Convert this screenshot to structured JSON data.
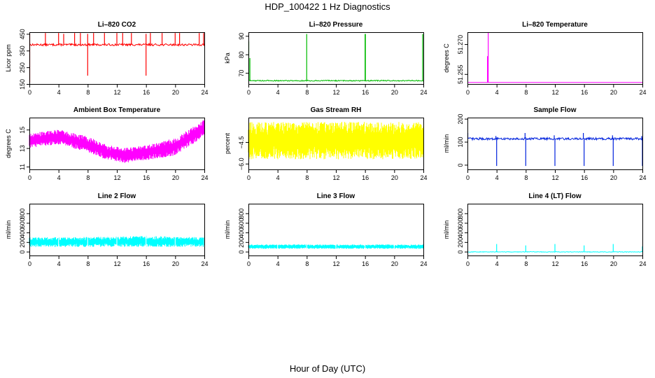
{
  "figure": {
    "title": "HDP_100422  1 Hz Diagnostics",
    "xlabel": "Hour of Day (UTC)"
  },
  "chart_data": [
    {
      "type": "line",
      "title": "Li–820 CO2",
      "ylabel": "Licor ppm",
      "color": "#ff0000",
      "xlim": [
        0,
        24
      ],
      "xticks": [
        "0",
        "4",
        "8",
        "12",
        "16",
        "20",
        "24"
      ],
      "ylim": [
        150,
        460
      ],
      "yticks": [
        {
          "v": 150,
          "label": "150"
        },
        {
          "v": 250,
          "label": "250"
        },
        {
          "v": 350,
          "label": "350"
        },
        {
          "v": 450,
          "label": "450"
        }
      ],
      "series": [
        {
          "pattern": "noise",
          "base": 385,
          "amp": 6,
          "spikes": [
            {
              "x": 0.05,
              "y": 160
            },
            {
              "x": 0.05,
              "y": 450
            },
            {
              "x": 2.2,
              "y": 455
            },
            {
              "x": 4.0,
              "y": 455
            },
            {
              "x": 4.7,
              "y": 450
            },
            {
              "x": 6.2,
              "y": 455
            },
            {
              "x": 7.0,
              "y": 455
            },
            {
              "x": 8.0,
              "y": 200
            },
            {
              "x": 8.0,
              "y": 450
            },
            {
              "x": 8.8,
              "y": 455
            },
            {
              "x": 10.3,
              "y": 455
            },
            {
              "x": 12.0,
              "y": 455
            },
            {
              "x": 12.8,
              "y": 455
            },
            {
              "x": 14.0,
              "y": 455
            },
            {
              "x": 16.0,
              "y": 200
            },
            {
              "x": 16.0,
              "y": 450
            },
            {
              "x": 16.6,
              "y": 455
            },
            {
              "x": 18.2,
              "y": 455
            },
            {
              "x": 20.0,
              "y": 455
            },
            {
              "x": 20.6,
              "y": 455
            },
            {
              "x": 23.3,
              "y": 455
            },
            {
              "x": 23.9,
              "y": 455
            }
          ]
        }
      ]
    },
    {
      "type": "line",
      "title": "Li–820 Pressure",
      "ylabel": "kPa",
      "color": "#00bb00",
      "xlim": [
        0,
        24
      ],
      "xticks": [
        "0",
        "4",
        "8",
        "12",
        "16",
        "20",
        "24"
      ],
      "ylim": [
        64,
        92
      ],
      "yticks": [
        {
          "v": 70,
          "label": "70"
        },
        {
          "v": 80,
          "label": "80"
        },
        {
          "v": 90,
          "label": "90"
        }
      ],
      "series": [
        {
          "pattern": "noise",
          "base": 65.8,
          "amp": 0.3,
          "spikes": [
            {
              "x": 0.05,
              "y": 87
            },
            {
              "x": 0.2,
              "y": 78
            },
            {
              "x": 8.0,
              "y": 91
            },
            {
              "x": 16.0,
              "y": 91
            },
            {
              "x": 16.05,
              "y": 91
            },
            {
              "x": 23.9,
              "y": 91
            }
          ]
        }
      ]
    },
    {
      "type": "line",
      "title": "Li–820 Temperature",
      "ylabel": "degrees C",
      "color": "#ff00ff",
      "xlim": [
        0,
        24
      ],
      "xticks": [
        "0",
        "4",
        "8",
        "12",
        "16",
        "20",
        "24"
      ],
      "ylim": [
        51.25,
        51.276
      ],
      "yticks": [
        {
          "v": 51.255,
          "label": "51.255"
        },
        {
          "v": 51.27,
          "label": "51.270"
        }
      ],
      "series": [
        {
          "pattern": "flat",
          "base": 51.2508,
          "amp": 0,
          "spikes": [
            {
              "x": 2.75,
              "y": 51.264
            },
            {
              "x": 2.85,
              "y": 51.276
            }
          ]
        }
      ]
    },
    {
      "type": "line",
      "title": "Ambient Box Temperature",
      "ylabel": "degrees C",
      "color": "#ff00ff",
      "xlim": [
        0,
        24
      ],
      "xticks": [
        "0",
        "4",
        "8",
        "12",
        "16",
        "20",
        "24"
      ],
      "ylim": [
        10.7,
        16.3
      ],
      "yticks": [
        {
          "v": 11,
          "label": "11"
        },
        {
          "v": 13,
          "label": "13"
        },
        {
          "v": 15,
          "label": "15"
        }
      ],
      "series": [
        {
          "pattern": "band",
          "lower": [
            [
              0,
              13.0
            ],
            [
              4,
              13.4
            ],
            [
              8,
              12.6
            ],
            [
              10,
              11.9
            ],
            [
              13,
              11.4
            ],
            [
              16,
              11.7
            ],
            [
              20,
              12.2
            ],
            [
              24,
              14.3
            ]
          ],
          "upper": [
            [
              0,
              14.6
            ],
            [
              4,
              15.0
            ],
            [
              8,
              14.3
            ],
            [
              10,
              13.5
            ],
            [
              13,
              13.0
            ],
            [
              16,
              13.3
            ],
            [
              20,
              14.1
            ],
            [
              24,
              16.1
            ]
          ]
        }
      ]
    },
    {
      "type": "line",
      "title": "Gas Stream RH",
      "ylabel": "percent",
      "color": "#ffff00",
      "xlim": [
        0,
        24
      ],
      "xticks": [
        "0",
        "4",
        "8",
        "12",
        "16",
        "20",
        "24"
      ],
      "ylim": [
        -6.4,
        -2.8
      ],
      "yticks": [
        {
          "v": -6.0,
          "label": "−6.0"
        },
        {
          "v": -4.5,
          "label": "−4.5"
        }
      ],
      "series": [
        {
          "pattern": "band",
          "lower": [
            [
              0,
              -5.7
            ],
            [
              24,
              -5.7
            ]
          ],
          "upper": [
            [
              0,
              -3.1
            ],
            [
              24,
              -3.1
            ]
          ]
        }
      ]
    },
    {
      "type": "line",
      "title": "Sample Flow",
      "ylabel": "ml/min",
      "color": "#0022dd",
      "xlim": [
        0,
        24
      ],
      "xticks": [
        "0",
        "4",
        "8",
        "12",
        "16",
        "20",
        "24"
      ],
      "ylim": [
        -20,
        205
      ],
      "yticks": [
        {
          "v": 0,
          "label": "0"
        },
        {
          "v": 100,
          "label": "100"
        },
        {
          "v": 200,
          "label": "200"
        }
      ],
      "series": [
        {
          "pattern": "noise",
          "base": 113,
          "amp": 5,
          "spikes": [
            {
              "x": 0.05,
              "y": 138
            },
            {
              "x": 3.9,
              "y": 125
            },
            {
              "x": 4.0,
              "y": -5
            },
            {
              "x": 7.9,
              "y": 138
            },
            {
              "x": 8.0,
              "y": -5
            },
            {
              "x": 11.9,
              "y": 128
            },
            {
              "x": 12.0,
              "y": -5
            },
            {
              "x": 15.9,
              "y": 138
            },
            {
              "x": 16.0,
              "y": -5
            },
            {
              "x": 19.9,
              "y": 128
            },
            {
              "x": 20.0,
              "y": -5
            },
            {
              "x": 23.9,
              "y": 125
            },
            {
              "x": 24.0,
              "y": -5
            }
          ]
        }
      ]
    },
    {
      "type": "line",
      "title": "Line 2 Flow",
      "ylabel": "ml/min",
      "color": "#00ffff",
      "xlim": [
        0,
        24
      ],
      "xticks": [
        "0",
        "4",
        "8",
        "12",
        "16",
        "20",
        "24"
      ],
      "ylim": [
        -80,
        1000
      ],
      "yticks": [
        {
          "v": 0,
          "label": "0"
        },
        {
          "v": 200,
          "label": "200"
        },
        {
          "v": 400,
          "label": "400"
        },
        {
          "v": 600,
          "label": "600"
        },
        {
          "v": 800,
          "label": "800"
        }
      ],
      "series": [
        {
          "pattern": "band",
          "lower": [
            [
              0,
              100
            ],
            [
              24,
              100
            ]
          ],
          "upper": [
            [
              0,
              300
            ],
            [
              12,
              310
            ],
            [
              16,
              330
            ],
            [
              20,
              310
            ],
            [
              24,
              300
            ]
          ],
          "gaps": [
            4,
            8,
            12,
            16,
            20,
            24
          ]
        }
      ]
    },
    {
      "type": "line",
      "title": "Line 3 Flow",
      "ylabel": "ml/min",
      "color": "#00ffff",
      "xlim": [
        0,
        24
      ],
      "xticks": [
        "0",
        "4",
        "8",
        "12",
        "16",
        "20",
        "24"
      ],
      "ylim": [
        -80,
        1000
      ],
      "yticks": [
        {
          "v": 0,
          "label": "0"
        },
        {
          "v": 200,
          "label": "200"
        },
        {
          "v": 400,
          "label": "400"
        },
        {
          "v": 600,
          "label": "600"
        },
        {
          "v": 800,
          "label": "800"
        }
      ],
      "series": [
        {
          "pattern": "band",
          "lower": [
            [
              0,
              60
            ],
            [
              24,
              60
            ]
          ],
          "upper": [
            [
              0,
              150
            ],
            [
              24,
              150
            ]
          ],
          "gaps": [
            4,
            8,
            12,
            16,
            20
          ]
        }
      ]
    },
    {
      "type": "line",
      "title": "Line 4 (LT) Flow",
      "ylabel": "ml/min",
      "color": "#00ffff",
      "xlim": [
        0,
        24
      ],
      "xticks": [
        "0",
        "4",
        "8",
        "12",
        "16",
        "20",
        "24"
      ],
      "ylim": [
        -80,
        1000
      ],
      "yticks": [
        {
          "v": 0,
          "label": "0"
        },
        {
          "v": 200,
          "label": "200"
        },
        {
          "v": 400,
          "label": "400"
        },
        {
          "v": 600,
          "label": "600"
        },
        {
          "v": 800,
          "label": "800"
        }
      ],
      "series": [
        {
          "pattern": "noise",
          "base": -5,
          "amp": 6,
          "spikes": [
            {
              "x": 4.0,
              "y": 160
            },
            {
              "x": 8.0,
              "y": 130
            },
            {
              "x": 12.0,
              "y": 160
            },
            {
              "x": 16.0,
              "y": 130
            },
            {
              "x": 20.0,
              "y": 160
            },
            {
              "x": 24.0,
              "y": 110
            }
          ]
        }
      ]
    }
  ]
}
